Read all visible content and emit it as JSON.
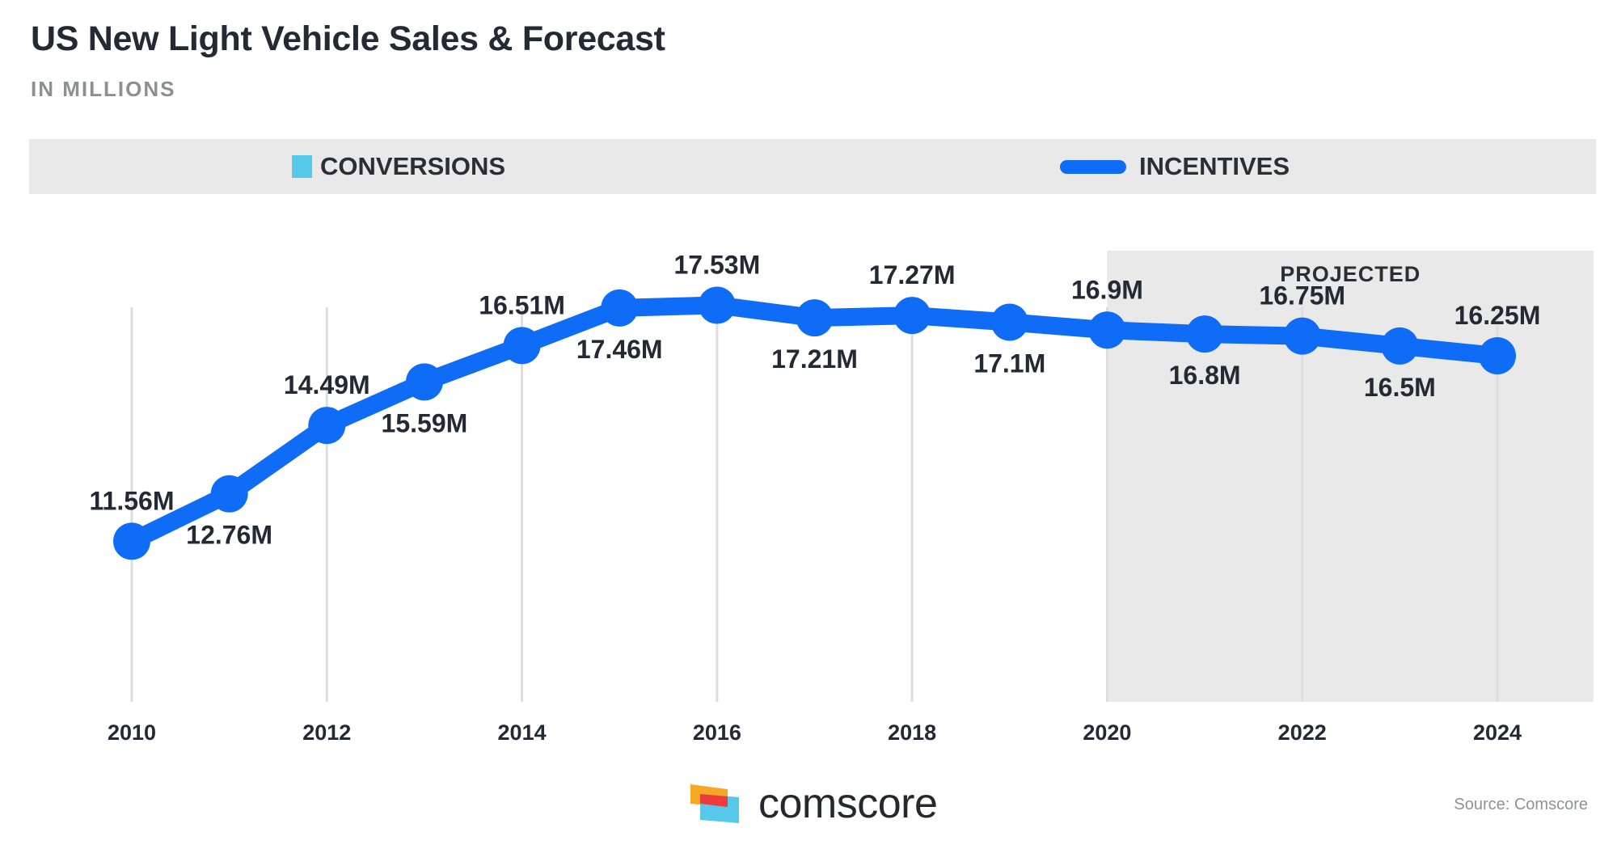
{
  "title": "US New Light Vehicle Sales & Forecast",
  "subtitle": "IN MILLIONS",
  "legend": {
    "conversions_label": "CONVERSIONS",
    "incentives_label": "INCENTIVES"
  },
  "projected_label": "PROJECTED",
  "brand": {
    "name": "comscore"
  },
  "source": "Source: Comscore",
  "colors": {
    "line": "#0f6cf7",
    "conversions": "#56c8ea",
    "projected_band": "#e9e9e9",
    "gridline": "#dedede",
    "label_text": "#232a33"
  },
  "chart_data": {
    "type": "line",
    "title": "US New Light Vehicle Sales & Forecast",
    "subtitle": "IN MILLIONS",
    "xlabel": "",
    "ylabel": "",
    "x": [
      2010,
      2011,
      2012,
      2013,
      2014,
      2015,
      2016,
      2017,
      2018,
      2019,
      2020,
      2021,
      2022,
      2023,
      2024
    ],
    "x_tick_labels": [
      "2010",
      "2012",
      "2014",
      "2016",
      "2018",
      "2020",
      "2022",
      "2024"
    ],
    "series": [
      {
        "name": "INCENTIVES",
        "values": [
          11.56,
          12.76,
          14.49,
          15.59,
          16.51,
          17.46,
          17.53,
          17.21,
          17.27,
          17.1,
          16.9,
          16.8,
          16.75,
          16.5,
          16.25
        ],
        "labels": [
          "11.56M",
          "12.76M",
          "14.49M",
          "15.59M",
          "16.51M",
          "17.46M",
          "17.53M",
          "17.21M",
          "17.27M",
          "17.1M",
          "16.9M",
          "16.8M",
          "16.75M",
          "16.5M",
          "16.25M"
        ]
      }
    ],
    "projected_from": 2020,
    "projected_to": 2024,
    "ylim": [
      7.5,
      18.5
    ],
    "grid": "vertical"
  }
}
